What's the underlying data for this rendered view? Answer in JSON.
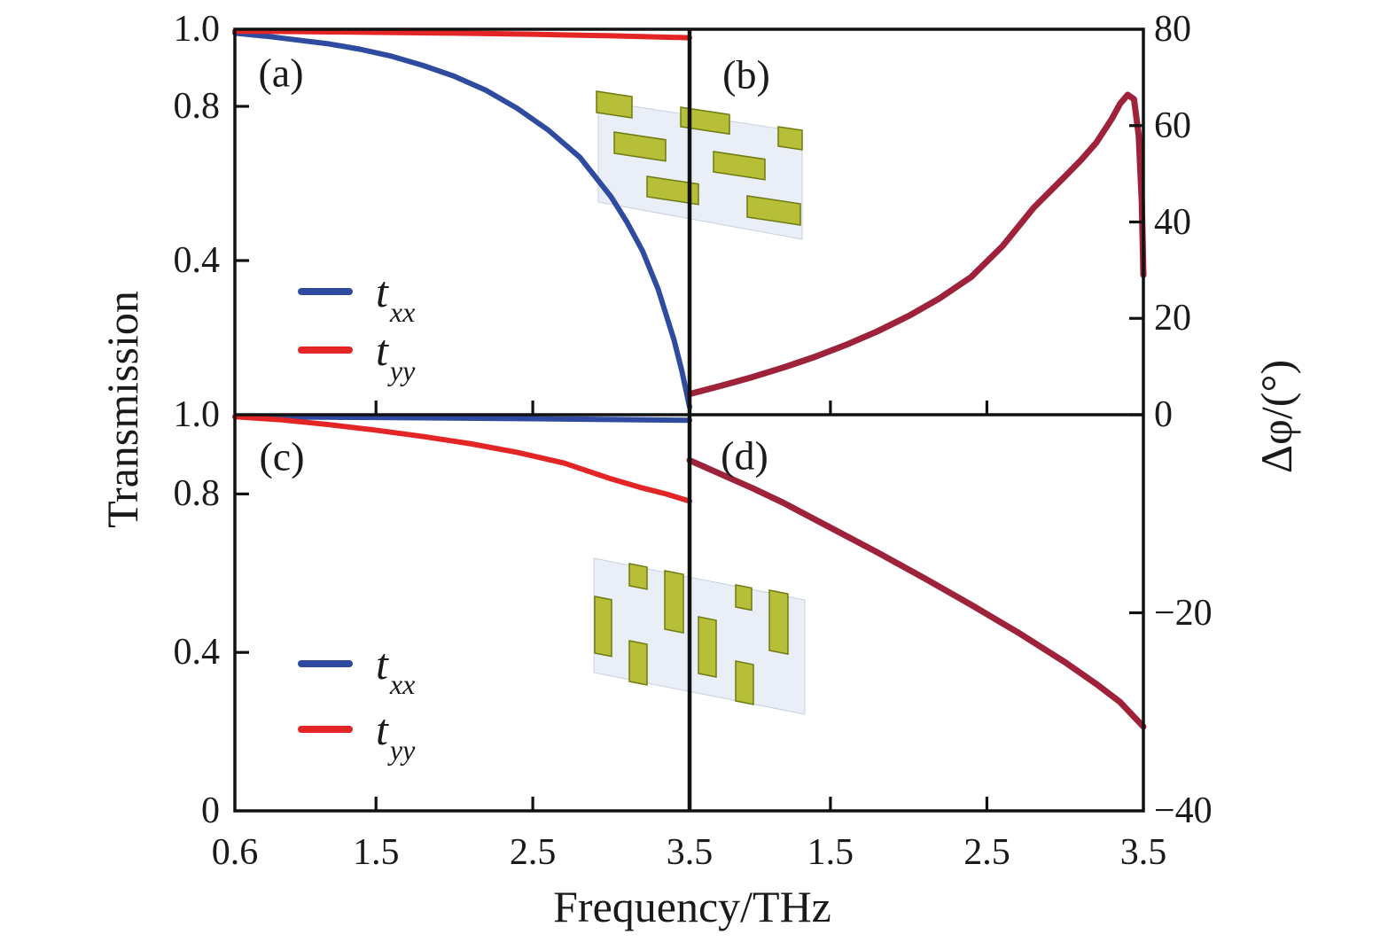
{
  "figure": {
    "x_axis_label": "Frequency/THz",
    "left_axis_label": "Transmission",
    "right_axis_label": "Δφ/(°)",
    "background": "#ffffff"
  },
  "colors": {
    "axis": "#111111",
    "t_xx": "#2e4b9f",
    "t_yy": "#e32526",
    "phase": "#9e2239",
    "inset_plate": "#eaeff7",
    "inset_plate_edge": "#c6d0e0",
    "inset_bar": "#b7be38",
    "inset_bar_edge": "#6e7a12"
  },
  "chart_data": [
    {
      "id": "a",
      "panel_label": "(a)",
      "type": "line",
      "position": "top-left",
      "x_range": [
        0.6,
        3.5
      ],
      "y_range": [
        0,
        1.0
      ],
      "x_tick_labels": [],
      "x_tick_values": [],
      "y_axis_side": "left",
      "y_tick_labels": [
        "1.0",
        "0.8",
        "0.4"
      ],
      "y_tick_values": [
        1.0,
        0.8,
        0.4
      ],
      "inset": "tilted metasurface plate with staggered horizontal gold bars",
      "legend": [
        {
          "main": "t",
          "sub": "xx",
          "color": "#2e4b9f"
        },
        {
          "main": "t",
          "sub": "yy",
          "color": "#e32526"
        }
      ],
      "series": [
        {
          "name": "t_xx",
          "color": "#2e4b9f",
          "x": [
            0.6,
            0.8,
            1.0,
            1.2,
            1.4,
            1.6,
            1.8,
            2.0,
            2.2,
            2.4,
            2.6,
            2.8,
            3.0,
            3.1,
            3.2,
            3.3,
            3.4,
            3.45,
            3.5
          ],
          "y": [
            0.99,
            0.982,
            0.972,
            0.962,
            0.948,
            0.93,
            0.906,
            0.878,
            0.842,
            0.795,
            0.738,
            0.668,
            0.565,
            0.5,
            0.425,
            0.325,
            0.195,
            0.115,
            0.02
          ]
        },
        {
          "name": "t_yy",
          "color": "#e32526",
          "x": [
            0.6,
            1.0,
            1.5,
            2.0,
            2.5,
            3.0,
            3.5
          ],
          "y": [
            0.995,
            0.994,
            0.992,
            0.99,
            0.987,
            0.983,
            0.978
          ]
        }
      ]
    },
    {
      "id": "b",
      "panel_label": "(b)",
      "type": "line",
      "position": "top-right",
      "x_range": [
        0.6,
        3.5
      ],
      "y_range": [
        0,
        80
      ],
      "x_tick_labels": [],
      "x_tick_values": [],
      "y_axis_side": "right",
      "y_tick_labels": [
        "80",
        "60",
        "40",
        "20"
      ],
      "y_tick_values": [
        80,
        60,
        40,
        20
      ],
      "series": [
        {
          "name": "delta_phi_top",
          "color": "#9e2239",
          "x": [
            0.6,
            0.8,
            1.0,
            1.2,
            1.4,
            1.6,
            1.8,
            2.0,
            2.2,
            2.4,
            2.6,
            2.8,
            3.0,
            3.1,
            3.2,
            3.3,
            3.35,
            3.4,
            3.44,
            3.47,
            3.49,
            3.5
          ],
          "y": [
            4.3,
            6.0,
            7.8,
            9.8,
            12.0,
            14.5,
            17.3,
            20.5,
            24.2,
            28.6,
            35.0,
            43.0,
            49.5,
            52.8,
            56.5,
            61.5,
            64.5,
            66.4,
            65.5,
            58.0,
            44.0,
            29.0
          ]
        }
      ]
    },
    {
      "id": "c",
      "panel_label": "(c)",
      "type": "line",
      "position": "bottom-left",
      "x_range": [
        0.6,
        3.5
      ],
      "y_range": [
        0,
        1.0
      ],
      "x_tick_labels": [
        "0.6",
        "1.5",
        "2.5",
        "3.5"
      ],
      "x_tick_values": [
        0.6,
        1.5,
        2.5,
        3.5
      ],
      "y_axis_side": "left",
      "y_tick_labels": [
        "1.0",
        "0.8",
        "0.4",
        "0"
      ],
      "y_tick_values": [
        1.0,
        0.8,
        0.4,
        0
      ],
      "inset": "tilted metasurface plate with staggered vertical gold bars",
      "legend": [
        {
          "main": "t",
          "sub": "xx",
          "color": "#2e4b9f"
        },
        {
          "main": "t",
          "sub": "yy",
          "color": "#e32526"
        }
      ],
      "series": [
        {
          "name": "t_xx",
          "color": "#2e4b9f",
          "x": [
            0.6,
            1.5,
            2.5,
            3.5
          ],
          "y": [
            0.995,
            0.993,
            0.99,
            0.986
          ]
        },
        {
          "name": "t_yy",
          "color": "#e32526",
          "x": [
            0.6,
            0.9,
            1.2,
            1.5,
            1.8,
            2.1,
            2.4,
            2.7,
            3.0,
            3.2,
            3.35,
            3.5
          ],
          "y": [
            0.995,
            0.987,
            0.975,
            0.961,
            0.945,
            0.927,
            0.905,
            0.878,
            0.838,
            0.815,
            0.8,
            0.782
          ]
        }
      ]
    },
    {
      "id": "d",
      "panel_label": "(d)",
      "type": "line",
      "position": "bottom-right",
      "x_range": [
        0.6,
        3.5
      ],
      "y_range": [
        -40,
        0
      ],
      "x_tick_labels": [
        "1.5",
        "2.5",
        "3.5"
      ],
      "x_tick_values": [
        1.5,
        2.5,
        3.5
      ],
      "y_axis_side": "right",
      "y_tick_labels": [
        "0",
        "−20",
        "−40"
      ],
      "y_tick_values": [
        0,
        -20,
        -40
      ],
      "series": [
        {
          "name": "delta_phi_bottom",
          "color": "#9e2239",
          "x": [
            0.6,
            0.8,
            1.0,
            1.2,
            1.5,
            1.8,
            2.1,
            2.4,
            2.7,
            3.0,
            3.2,
            3.35,
            3.5
          ],
          "y": [
            -4.6,
            -6.0,
            -7.4,
            -8.9,
            -11.4,
            -13.9,
            -16.5,
            -19.2,
            -22.0,
            -25.0,
            -27.2,
            -29.0,
            -31.5
          ]
        }
      ]
    }
  ]
}
